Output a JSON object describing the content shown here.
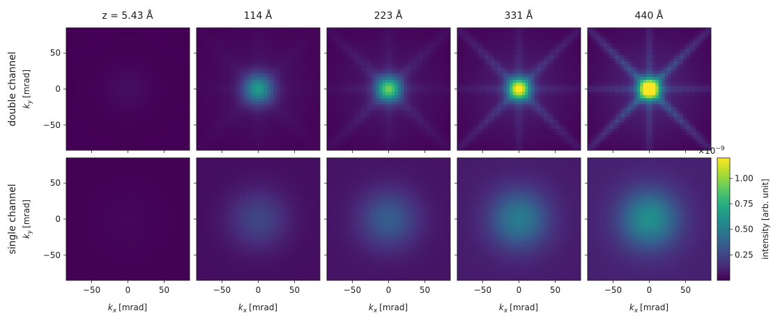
{
  "chart_data": {
    "type": "heatmap",
    "columns": [
      "z = 5.43 Å",
      "114 Å",
      "223 Å",
      "331 Å",
      "440 Å"
    ],
    "rows": [
      "double channel",
      "single channel"
    ],
    "x": {
      "label": "k",
      "label_sub": "x",
      "unit": "[mrad]",
      "lim": [
        -85,
        85
      ],
      "ticks": [
        -50,
        0,
        50
      ]
    },
    "y": {
      "label": "k",
      "label_sub": "y",
      "unit": "[mrad]",
      "lim": [
        -85,
        85
      ],
      "ticks": [
        50,
        0,
        -50
      ]
    },
    "colorbar": {
      "label": "intensity [arb. unit]",
      "scale_base": "×10",
      "scale_exp": "−9",
      "range": [
        0,
        1.2
      ],
      "ticks": [
        0.25,
        0.5,
        0.75,
        1.0
      ],
      "tick_labels": [
        "0.25",
        "0.50",
        "0.75",
        "1.00"
      ],
      "colormap": "viridis"
    },
    "peak_intensity_approx": {
      "double channel": [
        0.04,
        0.55,
        0.75,
        0.95,
        1.2
      ],
      "single channel": [
        0.02,
        0.25,
        0.35,
        0.5,
        0.6
      ]
    }
  }
}
